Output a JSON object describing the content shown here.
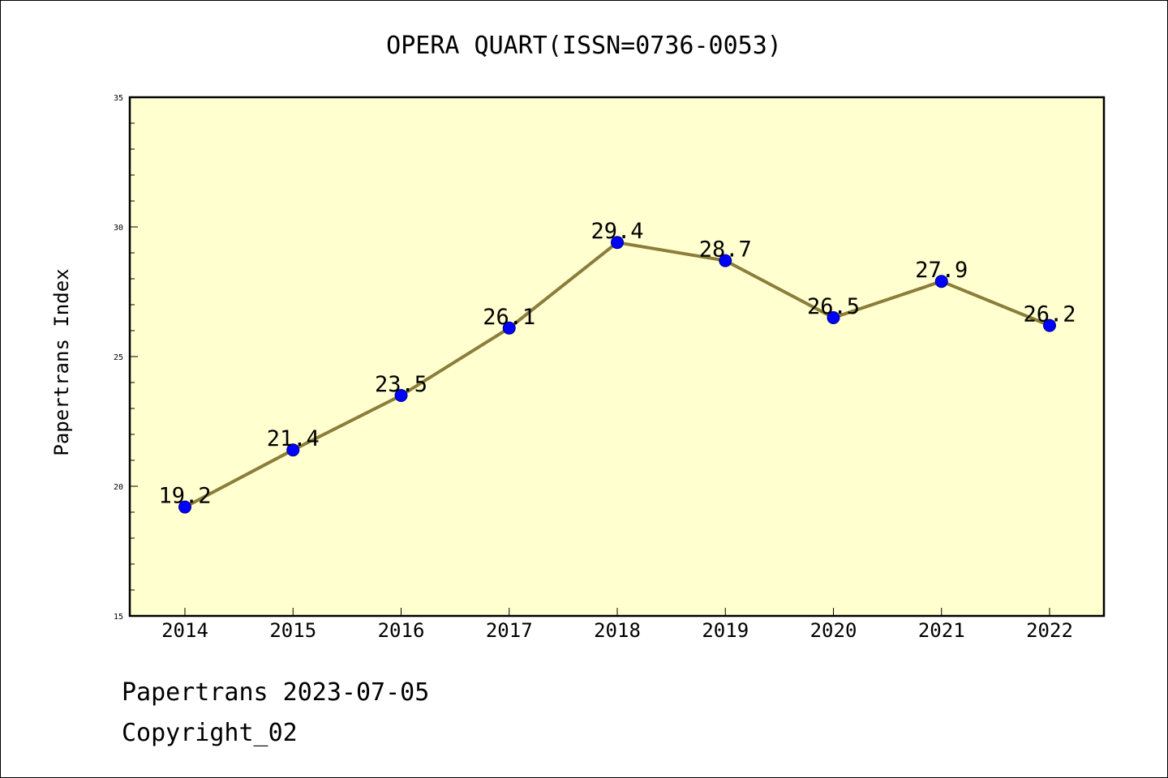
{
  "chart_data": {
    "type": "line",
    "title": "OPERA QUART(ISSN=0736-0053)",
    "ylabel": "Papertrans Index",
    "xlabel": "",
    "categories": [
      "2014",
      "2015",
      "2016",
      "2017",
      "2018",
      "2019",
      "2020",
      "2021",
      "2022"
    ],
    "series": [
      {
        "values": [
          19.2,
          21.4,
          23.5,
          26.1,
          29.4,
          28.7,
          26.5,
          27.9,
          26.2
        ],
        "data_labels": [
          "19.2",
          "21.4",
          "23.5",
          "26.1",
          "29.4",
          "28.7",
          "26.5",
          "27.9",
          "26.2"
        ]
      }
    ],
    "ylim": [
      15,
      35
    ],
    "yticks": [
      "15",
      "20",
      "25",
      "30",
      "35"
    ],
    "grid": false,
    "colors": {
      "plot_background": "#ffffd0",
      "line": "#8b7d3a",
      "marker": "#0000ff"
    }
  },
  "footer": {
    "line1": "Papertrans 2023-07-05",
    "line2": "Copyright_02"
  }
}
